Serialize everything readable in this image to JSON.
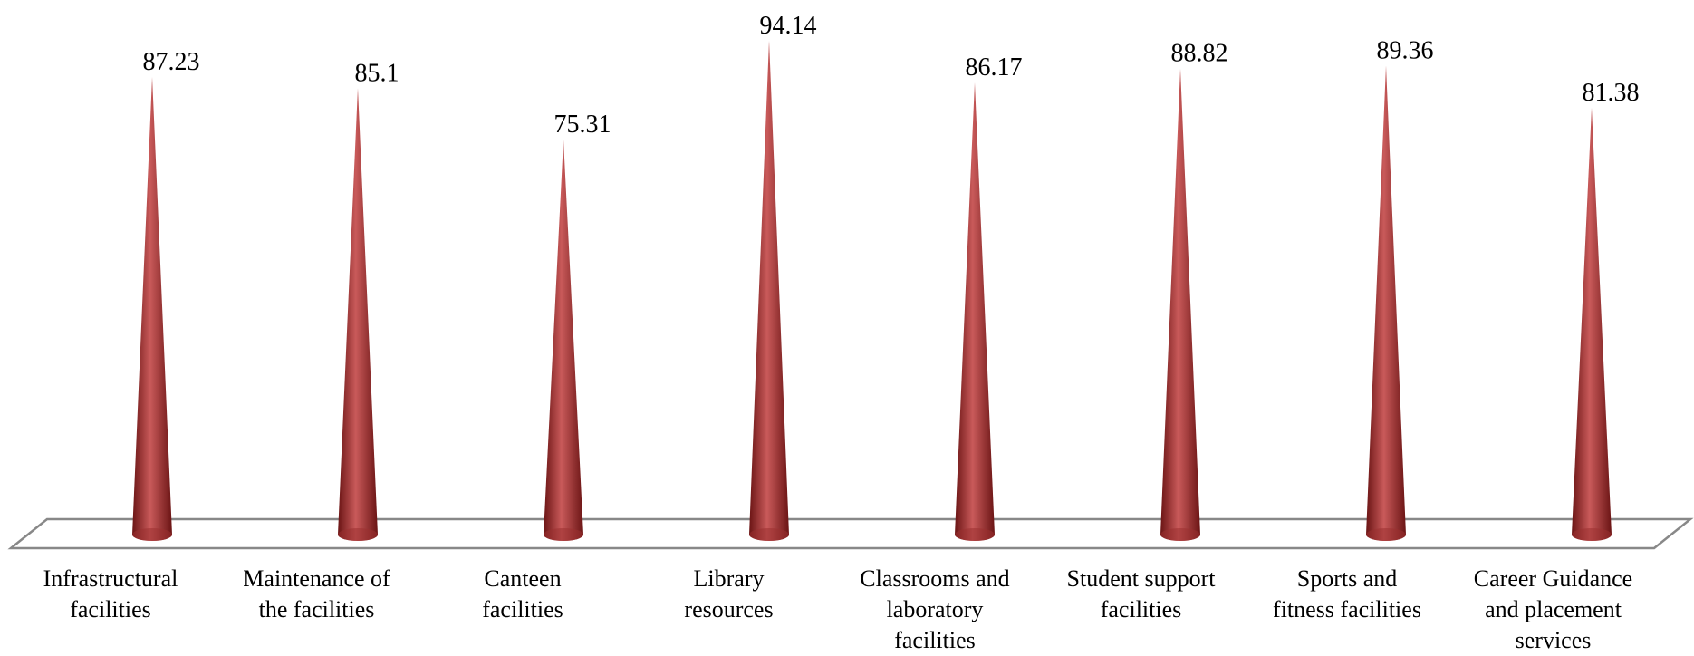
{
  "chart_data": {
    "type": "bar",
    "bar_shape": "cone",
    "categories": [
      "Infrastructural facilities",
      "Maintenance of the facilities",
      "Canteen facilities",
      "Library resources",
      "Classrooms and laboratory facilities",
      "Student support facilities",
      "Sports and fitness facilities",
      "Career Guidance and placement services"
    ],
    "category_lines": [
      [
        "Infrastructural",
        "facilities"
      ],
      [
        "Maintenance of",
        "the facilities"
      ],
      [
        "Canteen",
        "facilities"
      ],
      [
        "Library",
        "resources"
      ],
      [
        "Classrooms and",
        "laboratory",
        "facilities"
      ],
      [
        "Student support",
        "facilities"
      ],
      [
        "Sports and",
        "fitness facilities"
      ],
      [
        "Career Guidance",
        "and placement",
        "services"
      ]
    ],
    "values": [
      87.23,
      85.1,
      75.31,
      94.14,
      86.17,
      88.82,
      89.36,
      81.38
    ],
    "value_labels": [
      "87.23",
      "85.1",
      "75.31",
      "94.14",
      "86.17",
      "88.82",
      "89.36",
      "81.38"
    ],
    "ylim": [
      0,
      100
    ],
    "grid": false,
    "legend": false,
    "colors": {
      "bar": "#9b2f2f",
      "bar_light": "#c95a5a",
      "bar_dark": "#6a1414",
      "floor": "#888888"
    }
  }
}
